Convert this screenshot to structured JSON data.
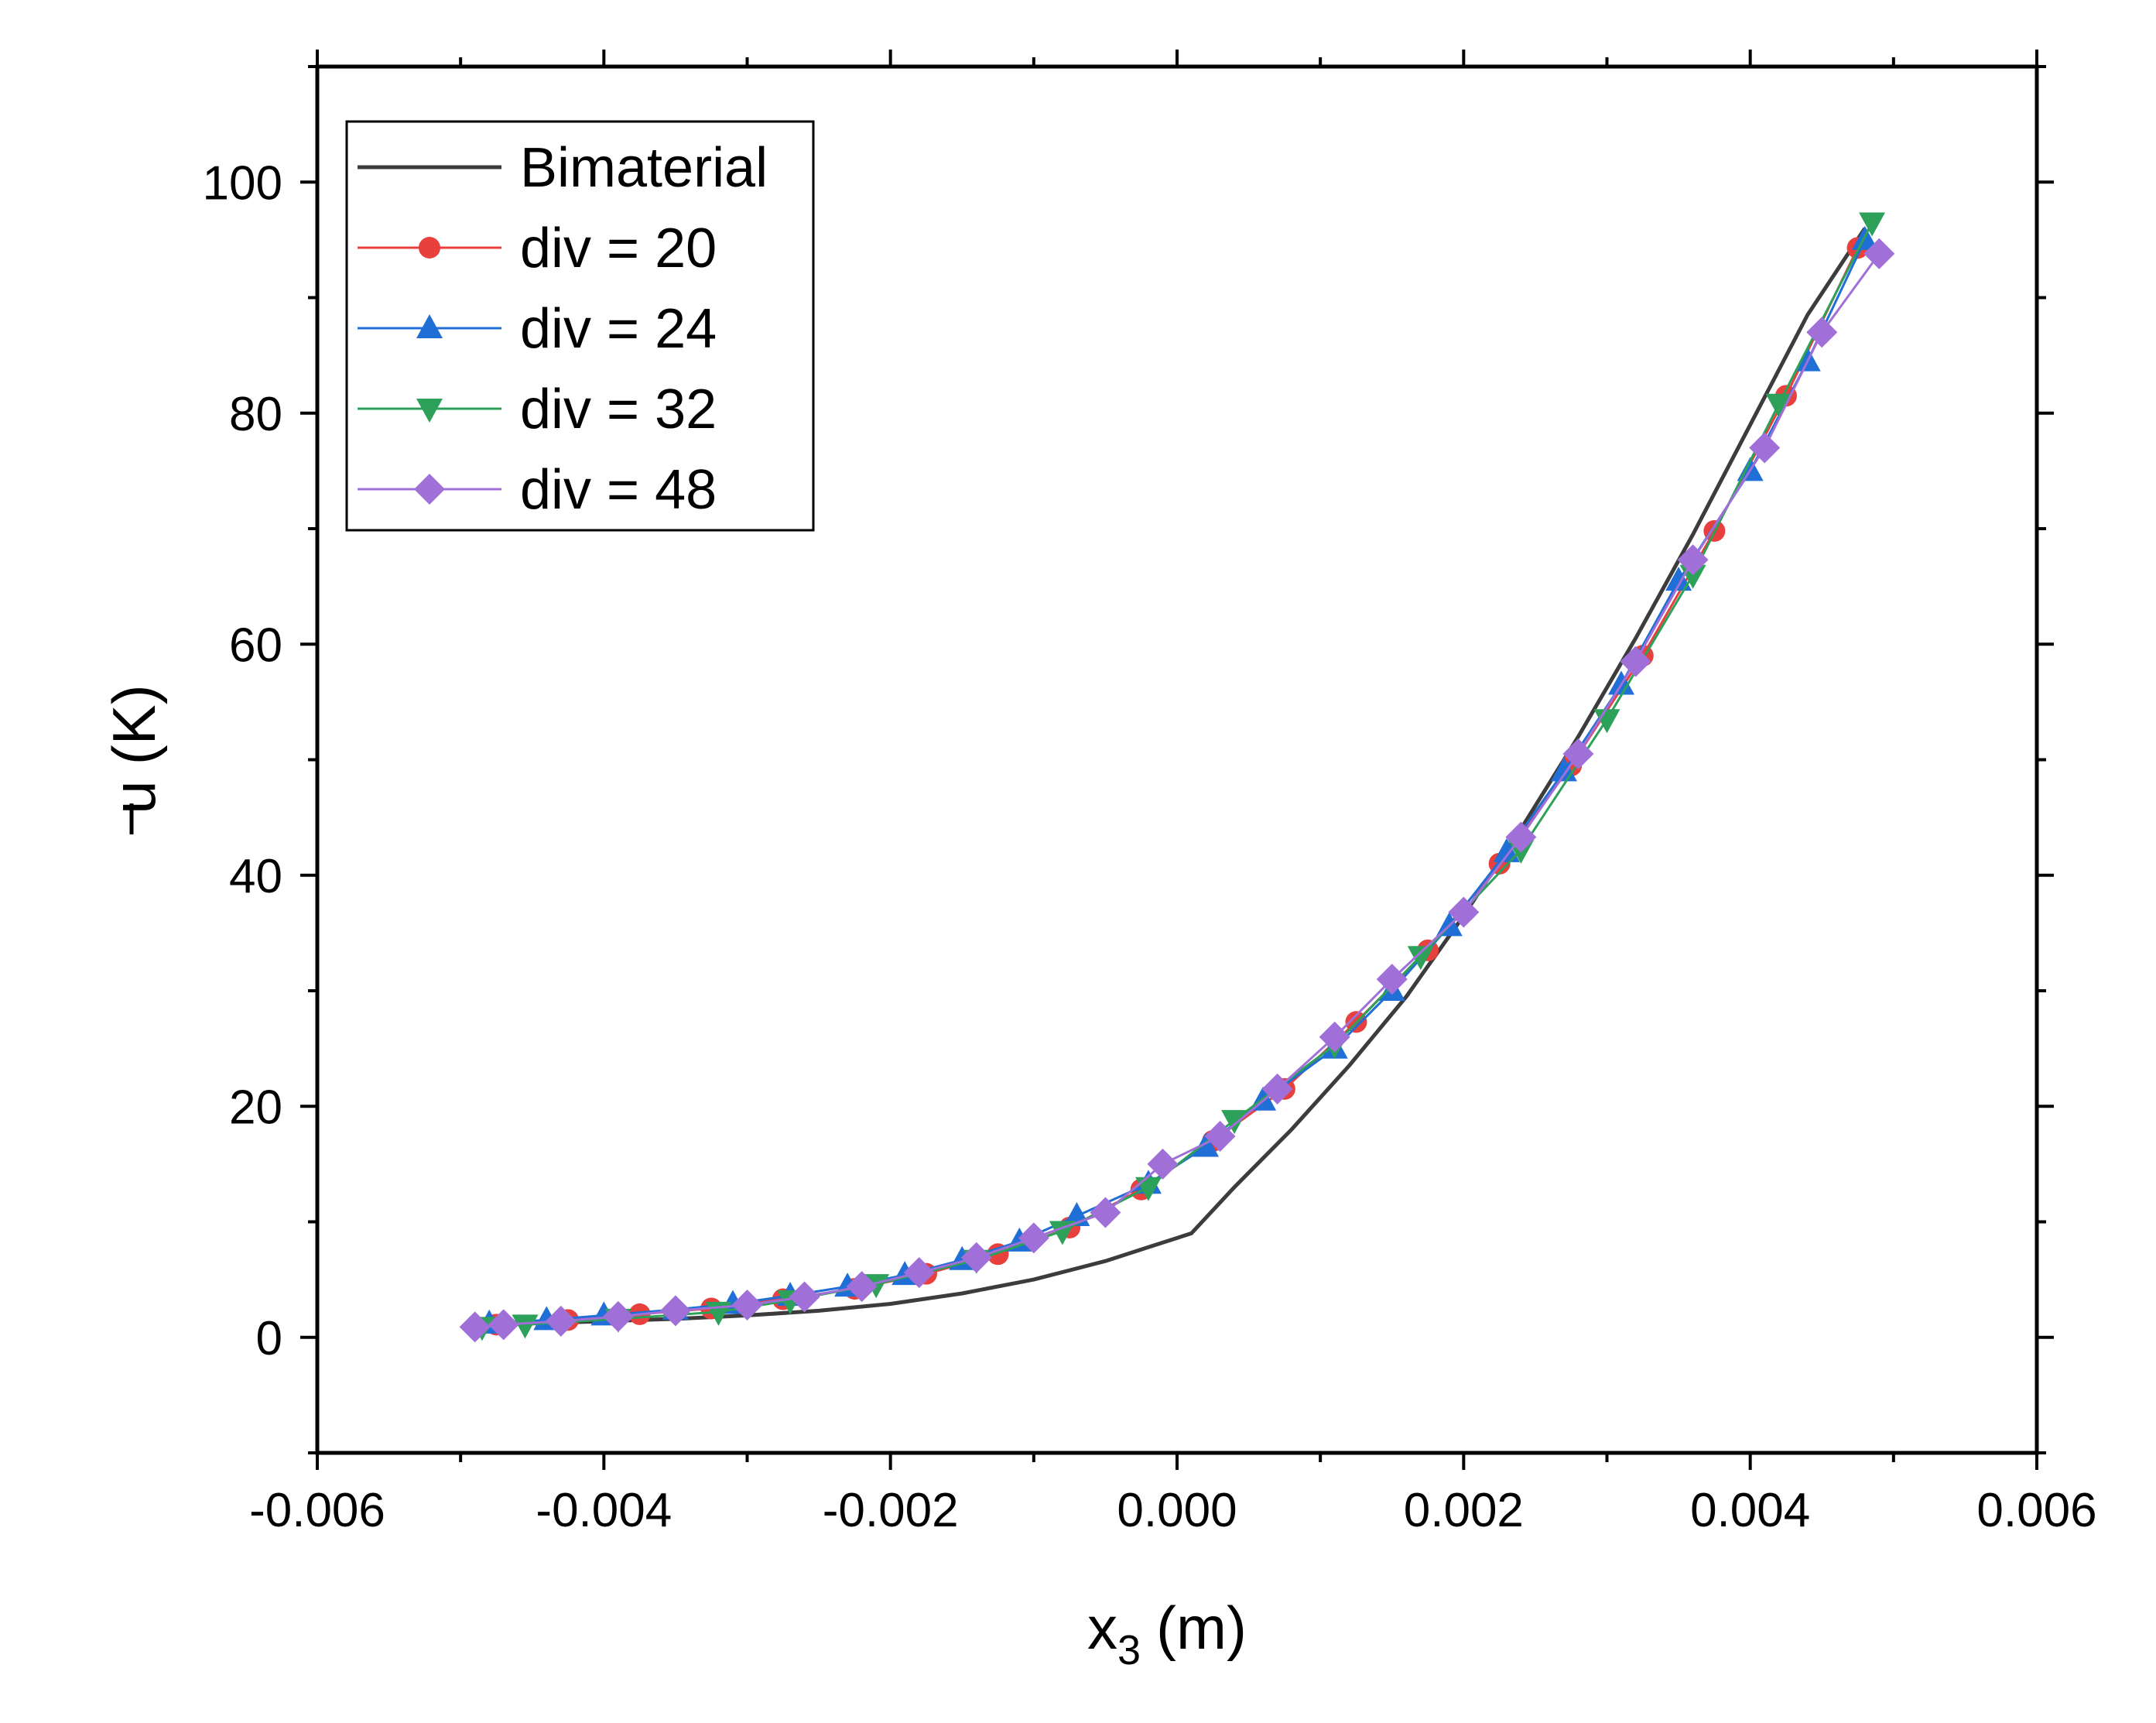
{
  "chart_data": {
    "type": "line",
    "title": "",
    "xlabel": "x",
    "xlabel_subscript": "3",
    "xlabel_unit": "(m)",
    "ylabel": "u",
    "ylabel_unit": "(K)",
    "xlim": [
      -0.006,
      0.006
    ],
    "ylim": [
      -10,
      110
    ],
    "xticks": [
      -0.006,
      -0.004,
      -0.002,
      0.0,
      0.002,
      0.004,
      0.006
    ],
    "xtick_labels": [
      "-0.006",
      "-0.004",
      "-0.002",
      "0.000",
      "0.002",
      "0.004",
      "0.006"
    ],
    "yticks": [
      0,
      20,
      40,
      60,
      80,
      100
    ],
    "ytick_labels": [
      "0",
      "20",
      "40",
      "60",
      "80",
      "100"
    ],
    "legend_position": "top-left",
    "series": [
      {
        "name": "Bimaterial",
        "color": "#3c3c3c",
        "marker": "none",
        "x": [
          -0.0049,
          -0.0045,
          -0.004,
          -0.0035,
          -0.003,
          -0.0025,
          -0.002,
          -0.0015,
          -0.001,
          -0.0005,
          -0.0002,
          0.0001,
          0.0004,
          0.0008,
          0.0012,
          0.0016,
          0.002,
          0.0024,
          0.0028,
          0.0032,
          0.0036,
          0.004,
          0.0044,
          0.0048
        ],
        "y": [
          1.0,
          1.2,
          1.4,
          1.6,
          1.9,
          2.3,
          2.9,
          3.8,
          5.0,
          6.6,
          7.8,
          9.0,
          13.0,
          18.0,
          23.5,
          29.5,
          36.5,
          44.0,
          52.0,
          60.5,
          69.5,
          79.0,
          88.5,
          96.0
        ]
      },
      {
        "name": "div = 20",
        "color": "#e8403c",
        "marker": "circle",
        "x": [
          -0.00475,
          -0.00425,
          -0.00375,
          -0.00325,
          -0.00275,
          -0.00225,
          -0.00175,
          -0.00125,
          -0.00075,
          -0.00025,
          0.00025,
          0.00075,
          0.00125,
          0.00175,
          0.00225,
          0.00275,
          0.00325,
          0.00375,
          0.00425,
          0.00475
        ],
        "y": [
          1.1,
          1.5,
          2.0,
          2.5,
          3.3,
          4.2,
          5.5,
          7.2,
          9.5,
          12.8,
          17.0,
          21.5,
          27.3,
          33.5,
          41.0,
          49.5,
          59.0,
          69.8,
          81.5,
          94.3
        ]
      },
      {
        "name": "div = 24",
        "color": "#1f6fd6",
        "marker": "triangle-up",
        "x": [
          -0.0048,
          -0.0044,
          -0.004,
          -0.0035,
          -0.0031,
          -0.0027,
          -0.0023,
          -0.0019,
          -0.0015,
          -0.0011,
          -0.0007,
          -0.0002,
          0.0002,
          0.0006,
          0.0011,
          0.0015,
          0.0019,
          0.0023,
          0.0027,
          0.0031,
          0.0035,
          0.004,
          0.0044,
          0.0048
        ],
        "y": [
          1.2,
          1.5,
          1.9,
          2.4,
          2.9,
          3.6,
          4.4,
          5.4,
          6.7,
          8.3,
          10.5,
          13.3,
          16.5,
          20.5,
          25.0,
          30.0,
          35.6,
          42.0,
          49.0,
          56.5,
          65.5,
          75.0,
          84.5,
          95.0
        ]
      },
      {
        "name": "div = 32",
        "color": "#2da05a",
        "marker": "triangle-down",
        "x": [
          -0.00485,
          -0.00455,
          -0.0039,
          -0.0032,
          -0.0027,
          -0.0021,
          -0.0014,
          -0.0008,
          -0.0002,
          0.0004,
          0.0011,
          0.0017,
          0.0024,
          0.003,
          0.0036,
          0.0042,
          0.00485
        ],
        "y": [
          0.9,
          1.1,
          1.6,
          2.2,
          3.2,
          4.6,
          6.7,
          9.2,
          13.0,
          18.8,
          25.3,
          33.0,
          42.2,
          53.5,
          66.0,
          80.8,
          96.5
        ]
      },
      {
        "name": "div = 48",
        "color": "#a070d8",
        "marker": "diamond",
        "x": [
          -0.0049,
          -0.0047,
          -0.0043,
          -0.0039,
          -0.0035,
          -0.003,
          -0.0026,
          -0.0022,
          -0.0018,
          -0.0014,
          -0.001,
          -0.0005,
          -0.0001,
          0.0003,
          0.0007,
          0.0011,
          0.0015,
          0.002,
          0.0024,
          0.0028,
          0.0032,
          0.0036,
          0.0041,
          0.0045,
          0.0049
        ],
        "y": [
          0.9,
          1.1,
          1.4,
          1.8,
          2.3,
          2.8,
          3.5,
          4.4,
          5.6,
          6.9,
          8.6,
          10.8,
          15.0,
          17.4,
          21.5,
          26.0,
          31.0,
          36.8,
          43.3,
          50.5,
          58.5,
          67.3,
          77.0,
          87.0,
          93.8
        ]
      }
    ]
  }
}
